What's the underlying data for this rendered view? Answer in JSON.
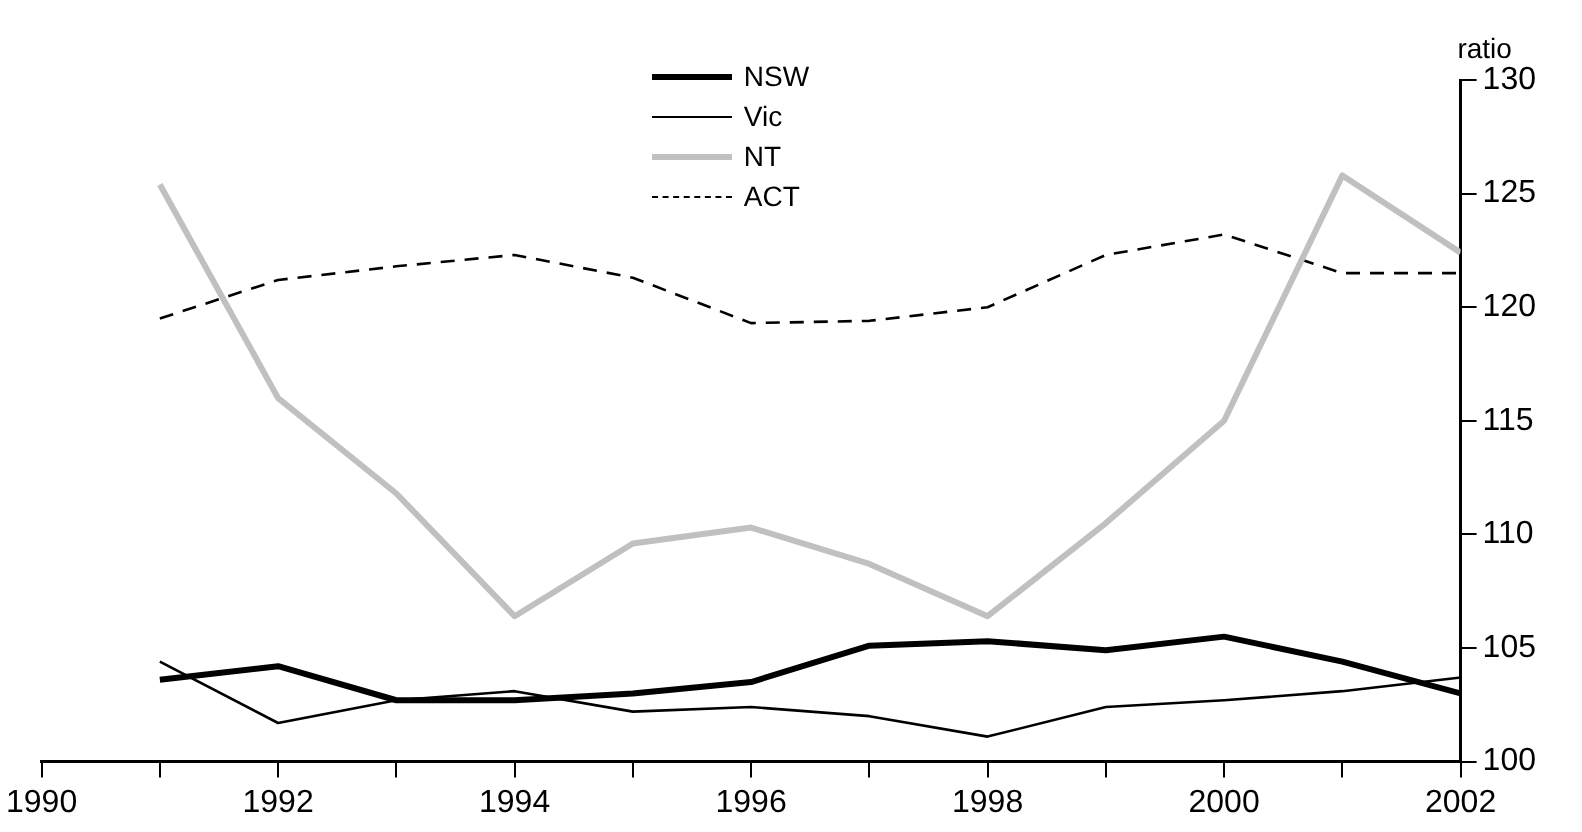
{
  "chart_data": {
    "type": "line",
    "ylabel": "ratio",
    "x": [
      1991,
      1992,
      1993,
      1994,
      1995,
      1996,
      1997,
      1998,
      1999,
      2000,
      2001,
      2002
    ],
    "series": [
      {
        "name": "NSW",
        "color": "#000000",
        "values": [
          103.6,
          104.2,
          102.7,
          102.7,
          103.0,
          103.5,
          105.1,
          105.3,
          104.9,
          105.5,
          104.4,
          103.0
        ]
      },
      {
        "name": "Vic",
        "color": "#000000",
        "values": [
          104.4,
          101.7,
          102.7,
          103.1,
          102.2,
          102.4,
          102.0,
          101.1,
          102.4,
          102.7,
          103.1,
          103.7
        ]
      },
      {
        "name": "NT",
        "color": "#c0c0c0",
        "values": [
          125.4,
          116.0,
          111.8,
          106.4,
          109.6,
          110.3,
          108.7,
          106.4,
          110.5,
          115.0,
          125.8,
          122.4
        ]
      },
      {
        "name": "ACT",
        "color": "#000000",
        "line_style": "dashed",
        "values": [
          119.5,
          121.2,
          121.8,
          122.3,
          121.3,
          119.3,
          119.4,
          120.0,
          122.3,
          123.2,
          121.5,
          121.5
        ]
      }
    ],
    "xlim": [
      1990,
      2002
    ],
    "xticks": [
      1990,
      {
        "value": 1991,
        "label": null
      },
      1992,
      {
        "value": 1993,
        "label": null
      },
      1994,
      {
        "value": 1995,
        "label": null
      },
      1996,
      {
        "value": 1997,
        "label": null
      },
      1998,
      {
        "value": 1999,
        "label": null
      },
      2000,
      {
        "value": 2001,
        "label": null
      },
      2002
    ],
    "ylim": [
      100,
      130
    ],
    "yticks": [
      100,
      105,
      110,
      115,
      120,
      125,
      130
    ],
    "grid": false,
    "legend": "top",
    "marker": "none",
    "line_style": "solid"
  }
}
